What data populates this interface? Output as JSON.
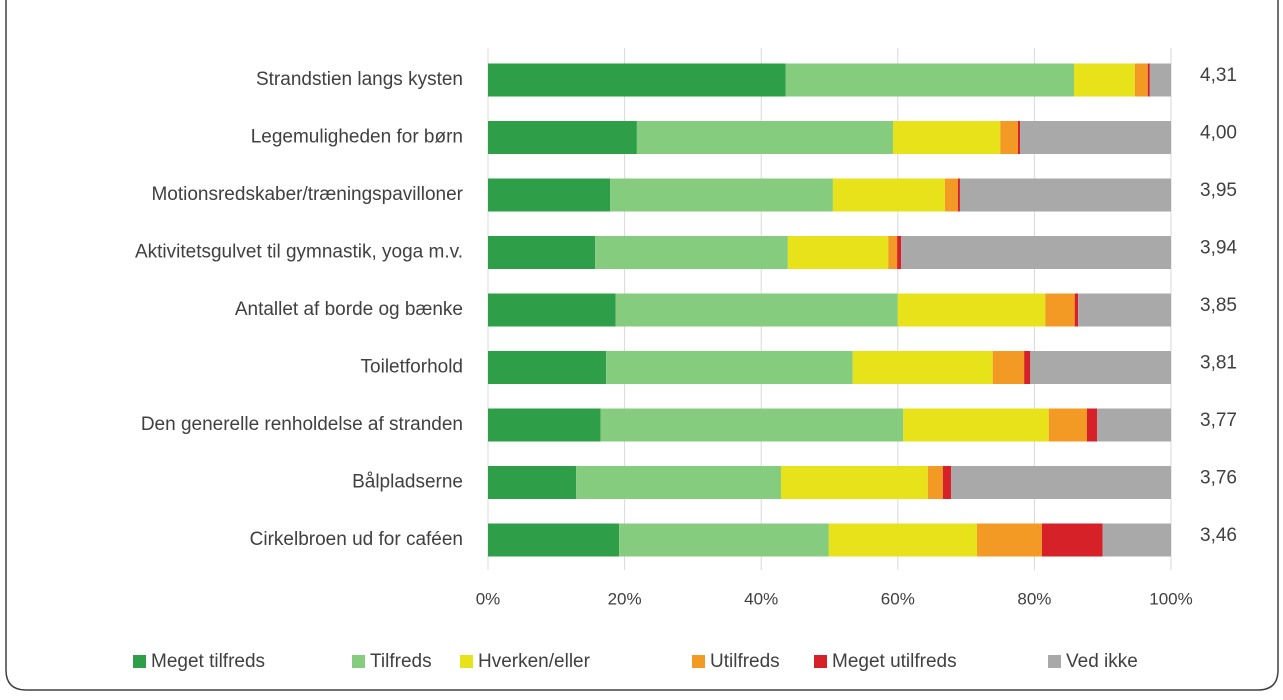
{
  "chart_data": {
    "type": "stacked-bar-horizontal",
    "categories": [
      "Strandstien langs kysten",
      "Legemuligheden for børn",
      "Motionsredskaber/træningspavilloner",
      "Aktivitetsgulvet til gymnastik, yoga m.v.",
      "Antallet af borde og bænke",
      "Toiletforhold",
      "Den generelle renholdelse af stranden",
      "Bålpladserne",
      "Cirkelbroen ud for caféen"
    ],
    "series": [
      {
        "name": "Meget tilfreds",
        "color": "#2e9e48",
        "values": [
          43.6,
          21.8,
          17.9,
          15.7,
          18.7,
          17.3,
          16.5,
          12.9,
          19.2
        ]
      },
      {
        "name": "Tilfreds",
        "color": "#86cc7e",
        "values": [
          42.2,
          37.5,
          32.6,
          28.2,
          41.3,
          36.1,
          44.3,
          30.0,
          30.7
        ]
      },
      {
        "name": "Hverken/eller",
        "color": "#e8e21a",
        "values": [
          8.9,
          15.7,
          16.4,
          14.7,
          21.6,
          20.5,
          21.3,
          21.5,
          21.7
        ]
      },
      {
        "name": "Utilfreds",
        "color": "#f39a25",
        "values": [
          1.9,
          2.6,
          1.9,
          1.3,
          4.3,
          4.6,
          5.6,
          2.2,
          9.5
        ]
      },
      {
        "name": "Meget utilfreds",
        "color": "#d62128",
        "values": [
          0.3,
          0.3,
          0.3,
          0.6,
          0.5,
          0.9,
          1.5,
          1.2,
          8.9
        ]
      },
      {
        "name": "Ved ikke",
        "color": "#aaa9a9",
        "values": [
          3.1,
          22.1,
          30.9,
          39.5,
          13.6,
          20.6,
          10.8,
          32.2,
          10.0
        ]
      }
    ],
    "scores": [
      4.31,
      4.0,
      3.95,
      3.94,
      3.85,
      3.81,
      3.77,
      3.76,
      3.46
    ],
    "score_labels": [
      "4,31",
      "4,00",
      "3,95",
      "3,94",
      "3,85",
      "3,81",
      "3,77",
      "3,76",
      "3,46"
    ],
    "xlim": [
      0,
      100
    ],
    "xticks": [
      {
        "value": 0,
        "label": "0%"
      },
      {
        "value": 20,
        "label": "20%"
      },
      {
        "value": 40,
        "label": "40%"
      },
      {
        "value": 60,
        "label": "60%"
      },
      {
        "value": 80,
        "label": "80%"
      },
      {
        "value": 100,
        "label": "100%"
      }
    ],
    "grid": true,
    "legend": "bottom"
  }
}
